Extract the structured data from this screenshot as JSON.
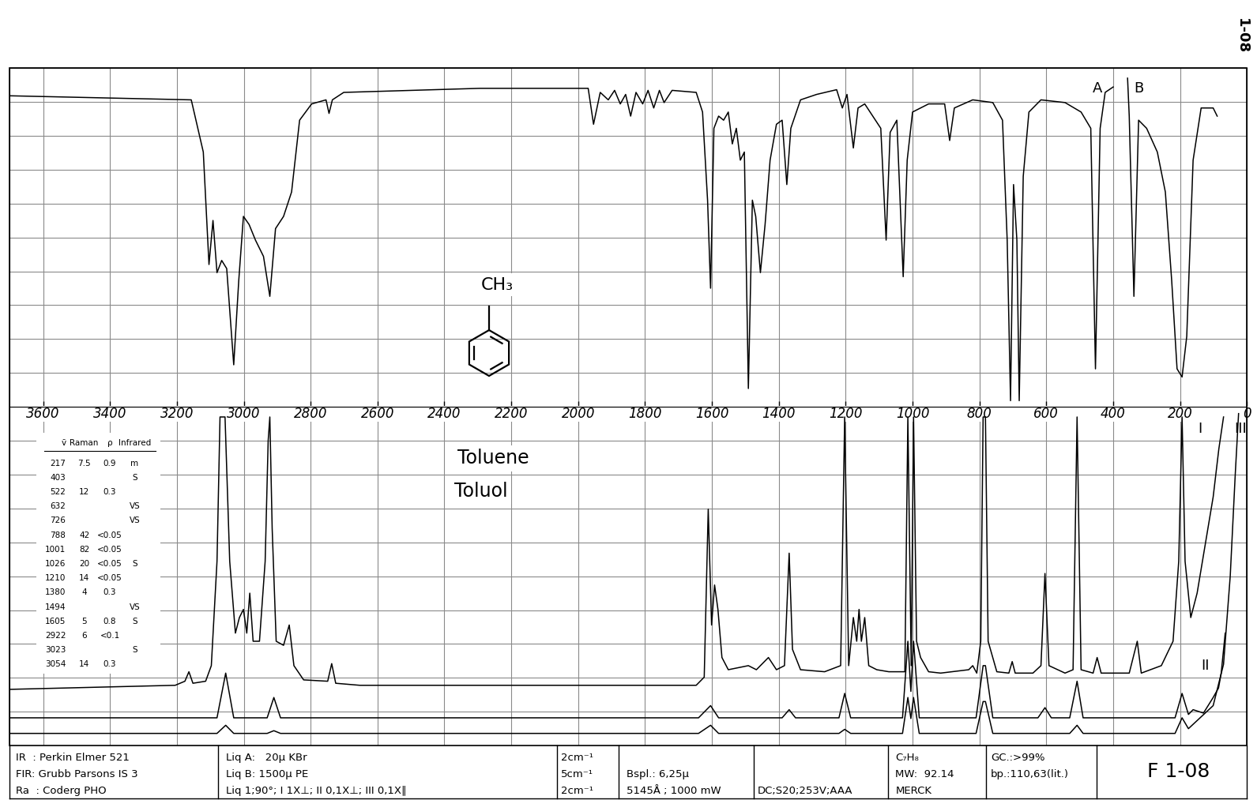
{
  "chart_data": {
    "type": "line",
    "xlim": [
      3700,
      0
    ],
    "ylim": [
      0,
      100
    ],
    "xticks": [
      3600,
      3400,
      3200,
      3000,
      2800,
      2600,
      2400,
      2200,
      2000,
      1800,
      1600,
      1400,
      1200,
      1000,
      800,
      600,
      400,
      200,
      0
    ],
    "yticks": [
      0,
      5,
      10,
      15,
      20,
      25,
      30,
      35,
      40,
      45,
      50,
      55,
      60,
      65,
      70,
      75,
      80,
      85,
      90,
      95,
      100
    ],
    "grid": true,
    "tick_labels": "x",
    "series": [
      {
        "name": "A",
        "color": "#000000",
        "x": [
          3700,
          3157,
          3121,
          3104,
          3092,
          3080,
          3066,
          3051,
          3030,
          3015,
          3001,
          2984,
          2965,
          2941,
          2922,
          2905,
          2881,
          2857,
          2833,
          2797,
          2754,
          2745,
          2735,
          2701,
          2294,
          1970,
          1954,
          1934,
          1910,
          1891,
          1874,
          1858,
          1843,
          1827,
          1807,
          1791,
          1774,
          1757,
          1743,
          1719,
          1647,
          1628,
          1613,
          1604,
          1594,
          1580,
          1565,
          1551,
          1539,
          1527,
          1515,
          1503,
          1491,
          1479,
          1469,
          1455,
          1441,
          1426,
          1407,
          1390,
          1376,
          1364,
          1335,
          1287,
          1227,
          1210,
          1196,
          1177,
          1163,
          1143,
          1095,
          1079,
          1067,
          1047,
          1028,
          1016,
          1000,
          952,
          904,
          889,
          875,
          820,
          760,
          731,
          717,
          707,
          698,
          688,
          681,
          669,
          652,
          616,
          544,
          496,
          467,
          453,
          439,
          424,
          400
        ],
        "values": [
          95.9,
          95.3,
          87.6,
          71.0,
          77.5,
          69.8,
          71.6,
          70.4,
          56.2,
          68.6,
          78.1,
          76.9,
          74.6,
          72.2,
          66.3,
          76.3,
          78.1,
          81.7,
          92.3,
          94.7,
          95.3,
          93.3,
          95.3,
          96.4,
          97.0,
          97.0,
          91.7,
          96.4,
          95.3,
          96.7,
          94.7,
          96.1,
          92.9,
          96.4,
          94.7,
          96.7,
          94.1,
          96.7,
          94.9,
          96.7,
          96.4,
          93.5,
          80.5,
          67.5,
          91.1,
          92.9,
          92.3,
          93.5,
          88.8,
          91.1,
          86.4,
          87.6,
          52.7,
          80.5,
          78.1,
          69.8,
          76.9,
          86.4,
          91.7,
          92.3,
          82.8,
          91.1,
          95.3,
          96.1,
          96.8,
          94.1,
          96.1,
          88.2,
          94.1,
          94.7,
          91.1,
          74.6,
          90.5,
          92.3,
          69.2,
          86.4,
          93.5,
          94.7,
          94.7,
          89.3,
          94.1,
          95.3,
          94.9,
          92.3,
          74.6,
          50.9,
          82.8,
          74.6,
          50.9,
          84.0,
          93.5,
          95.3,
          94.9,
          93.5,
          91.1,
          55.6,
          91.1,
          96.4,
          97.2
        ]
      },
      {
        "name": "B",
        "color": "#000000",
        "x": [
          357,
          352,
          338,
          324,
          300,
          268,
          244,
          225,
          209,
          194,
          180,
          161,
          137,
          101,
          89
        ],
        "values": [
          98.5,
          92.9,
          66.3,
          92.3,
          91.1,
          87.6,
          81.7,
          68.6,
          55.6,
          54.4,
          60.4,
          86.4,
          94.1,
          94.1,
          92.9
        ]
      },
      {
        "name": "I",
        "color": "#000000",
        "x": [
          3700,
          3205,
          3176,
          3164,
          3152,
          3114,
          3097,
          3080,
          3071,
          3056,
          3042,
          3025,
          3013,
          3001,
          2991,
          2982,
          2972,
          2953,
          2936,
          2927,
          2922,
          2915,
          2903,
          2881,
          2864,
          2850,
          2821,
          2749,
          2737,
          2725,
          2653,
          2294,
          2054,
          1647,
          1623,
          1611,
          1601,
          1592,
          1582,
          1570,
          1551,
          1491,
          1467,
          1431,
          1407,
          1383,
          1369,
          1359,
          1335,
          1263,
          1215,
          1203,
          1191,
          1177,
          1167,
          1160,
          1153,
          1143,
          1131,
          1107,
          1071,
          1023,
          1014,
          1004,
          997,
          988,
          976,
          952,
          916,
          832,
          820,
          808,
          796,
          789,
          782,
          774,
          748,
          712,
          702,
          693,
          640,
          616,
          604,
          592,
          544,
          520,
          508,
          496,
          460,
          448,
          436,
          352,
          328,
          316,
          256,
          221,
          204,
          194,
          185,
          168,
          149,
          125,
          101,
          84,
          70
        ],
        "values": [
          8.3,
          8.9,
          9.5,
          10.9,
          9.2,
          9.5,
          11.8,
          27.2,
          48.5,
          48.5,
          27.2,
          16.6,
          18.9,
          20.1,
          16.6,
          22.5,
          15.4,
          15.4,
          27.2,
          45.0,
          48.5,
          32.0,
          15.4,
          14.8,
          17.8,
          11.8,
          9.7,
          9.5,
          12.1,
          9.2,
          8.9,
          8.9,
          8.9,
          8.9,
          10.1,
          34.9,
          17.8,
          23.7,
          20.1,
          13.0,
          11.2,
          11.8,
          11.2,
          13.0,
          11.2,
          11.8,
          28.4,
          14.2,
          11.2,
          10.9,
          11.8,
          48.5,
          11.8,
          18.9,
          15.4,
          20.1,
          15.4,
          18.9,
          11.8,
          11.2,
          10.9,
          10.9,
          48.5,
          11.8,
          48.5,
          15.4,
          13.0,
          10.9,
          10.7,
          11.2,
          11.8,
          10.7,
          15.4,
          48.5,
          48.5,
          15.4,
          10.9,
          10.7,
          12.4,
          10.7,
          10.7,
          11.8,
          25.4,
          11.8,
          10.7,
          11.2,
          48.5,
          11.2,
          10.7,
          13.0,
          10.7,
          10.7,
          15.4,
          10.7,
          11.8,
          15.4,
          27.2,
          48.5,
          27.2,
          18.9,
          22.5,
          29.6,
          36.7,
          43.8,
          48.5
        ]
      },
      {
        "name": "II",
        "color": "#000000",
        "x": [
          3700,
          3080,
          3054,
          3030,
          2930,
          2910,
          2890,
          1640,
          1604,
          1580,
          1390,
          1369,
          1350,
          1220,
          1203,
          1185,
          1030,
          1014,
          1005,
          997,
          980,
          810,
          789,
          782,
          760,
          625,
          604,
          585,
          530,
          508,
          490,
          215,
          194,
          175,
          161,
          130,
          101,
          85,
          77,
          65
        ],
        "values": [
          4.1,
          4.1,
          10.7,
          4.1,
          4.1,
          7.1,
          4.1,
          4.1,
          5.9,
          4.1,
          4.1,
          5.3,
          4.1,
          4.1,
          7.7,
          4.1,
          4.1,
          15.4,
          8.0,
          15.4,
          4.1,
          4.1,
          11.8,
          11.8,
          4.1,
          4.1,
          5.6,
          4.1,
          4.1,
          9.5,
          4.1,
          4.1,
          7.7,
          4.6,
          5.3,
          4.8,
          7.1,
          8.5,
          10.7,
          16.6
        ]
      },
      {
        "name": "III",
        "color": "#000000",
        "x": [
          3700,
          3080,
          3054,
          3030,
          2930,
          2910,
          2890,
          1640,
          1604,
          1580,
          1220,
          1203,
          1185,
          1030,
          1014,
          1005,
          997,
          980,
          810,
          789,
          782,
          760,
          530,
          508,
          490,
          215,
          194,
          175,
          101,
          70,
          50,
          35,
          25
        ],
        "values": [
          1.8,
          1.8,
          3.0,
          1.8,
          1.8,
          2.2,
          1.8,
          1.8,
          3.0,
          1.8,
          1.8,
          2.4,
          1.8,
          1.8,
          7.1,
          4.0,
          7.1,
          1.8,
          1.8,
          6.5,
          6.5,
          1.8,
          1.8,
          3.0,
          1.8,
          1.8,
          4.1,
          2.5,
          5.9,
          12.0,
          25.0,
          40.0,
          49.0
        ]
      }
    ],
    "annotations": [
      "CH₃",
      "Toluene",
      "Toluol"
    ]
  },
  "table": {
    "columns": [
      "ṽ",
      "Raman",
      "ρ",
      "Infrared"
    ],
    "rows": [
      [
        "217",
        "7.5",
        "0.9",
        "m"
      ],
      [
        "403",
        null,
        null,
        "S"
      ],
      [
        "522",
        "12",
        "0.3",
        null
      ],
      [
        "632",
        null,
        null,
        "VS"
      ],
      [
        "726",
        null,
        null,
        "VS"
      ],
      [
        "788",
        "42",
        "<0.05",
        null
      ],
      [
        "1001",
        "82",
        "<0.05",
        null
      ],
      [
        "1026",
        "20",
        "<0.05",
        "S"
      ],
      [
        "1210",
        "14",
        "<0.05",
        null
      ],
      [
        "1380",
        "4",
        "0.3",
        null
      ],
      [
        "1494",
        null,
        null,
        "VS"
      ],
      [
        "1605",
        "5",
        "0.8",
        "S"
      ],
      [
        "2922",
        "6",
        "<0.1",
        null
      ],
      [
        "3023",
        null,
        null,
        "S"
      ],
      [
        "3054",
        "14",
        "0.3",
        null
      ]
    ]
  },
  "footer": {
    "columns": [
      [
        "IR  : Perkin Elmer 521",
        "FIR: Grubb Parsons IS 3",
        "Ra  : Coderg PHO"
      ],
      [
        "Liq A:   20µ KBr",
        "Liq B: 1500µ PE",
        "Liq 1;90°; I 1X⊥; II 0,1X⊥; III 0,1X∥"
      ],
      [
        "2cm⁻¹",
        "5cm⁻¹",
        "2cm⁻¹"
      ],
      [
        null,
        "Bspl.: 6,25µ",
        "5145Å ; 1000 mW"
      ],
      [
        null,
        null,
        "DC;S20;253V;AAA"
      ],
      [
        "C₇H₈",
        "MW:  92.14",
        "MERCK"
      ],
      [
        "GC.:>99%",
        "bp.:110,63(lit.)",
        null
      ]
    ],
    "code": "F 1-08"
  },
  "page": "1-08"
}
